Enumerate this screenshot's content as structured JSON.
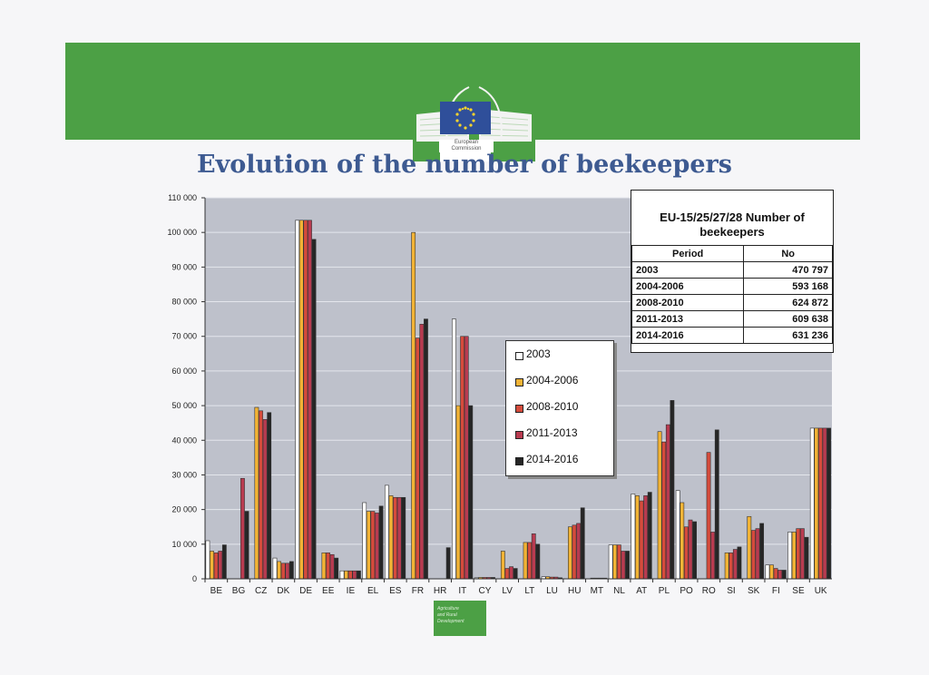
{
  "title": "Evolution of the number of beekeepers",
  "logo": {
    "text_line1": "European",
    "text_line2": "Commission"
  },
  "footer_logo": {
    "line1": "Agriculture",
    "line2": "and Rural",
    "line3": "Development"
  },
  "colors": {
    "banner": "#4ca045",
    "plot_bg": "#bec1cb",
    "series": [
      "#ffffff",
      "#f2b335",
      "#d54b3c",
      "#b83b50",
      "#262626"
    ]
  },
  "summary_table": {
    "title_line1": "EU-15/25/27/28 Number of",
    "title_line2": "beekeepers",
    "headers": [
      "Period",
      "No"
    ],
    "rows": [
      [
        "2003",
        "470 797"
      ],
      [
        "2004-2006",
        "593 168"
      ],
      [
        "2008-2010",
        "624 872"
      ],
      [
        "2011-2013",
        "609 638"
      ],
      [
        "2014-2016",
        "631 236"
      ]
    ]
  },
  "chart_data": {
    "type": "bar",
    "title": "",
    "xlabel": "",
    "ylabel": "",
    "ylim": [
      0,
      110000
    ],
    "yticks": [
      "0",
      "10 000",
      "20 000",
      "30 000",
      "40 000",
      "50 000",
      "60 000",
      "70 000",
      "80 000",
      "90 000",
      "100 000",
      "110 000"
    ],
    "grid": true,
    "legend_position": "center-right",
    "categories": [
      "BE",
      "BG",
      "CZ",
      "DK",
      "DE",
      "EE",
      "IE",
      "EL",
      "ES",
      "FR",
      "HR",
      "IT",
      "CY",
      "LV",
      "LT",
      "LU",
      "HU",
      "MT",
      "NL",
      "AT",
      "PL",
      "PO",
      "RO",
      "SI",
      "SK",
      "FI",
      "SE",
      "UK"
    ],
    "series": [
      {
        "name": "2003",
        "values": [
          11000,
          null,
          null,
          6000,
          103500,
          null,
          2300,
          22000,
          27000,
          null,
          null,
          75000,
          300,
          null,
          null,
          600,
          null,
          null,
          9800,
          24500,
          null,
          25500,
          null,
          null,
          null,
          4000,
          13500,
          43500
        ]
      },
      {
        "name": "2004-2006",
        "values": [
          8000,
          null,
          49500,
          5000,
          103500,
          7500,
          2300,
          19500,
          24000,
          100000,
          null,
          50000,
          400,
          8000,
          10500,
          600,
          15000,
          100,
          9800,
          24000,
          42500,
          22000,
          null,
          7500,
          18000,
          4000,
          13500,
          43500
        ]
      },
      {
        "name": "2008-2010",
        "values": [
          7500,
          null,
          48500,
          4500,
          103500,
          7500,
          2300,
          19500,
          23500,
          69500,
          null,
          70000,
          400,
          3000,
          10500,
          500,
          15500,
          100,
          9800,
          22500,
          39500,
          15000,
          36500,
          7500,
          14000,
          3000,
          14500,
          43500
        ]
      },
      {
        "name": "2011-2013",
        "values": [
          8000,
          29000,
          46000,
          4500,
          103500,
          7000,
          2300,
          19000,
          23500,
          73500,
          null,
          70000,
          400,
          3500,
          13000,
          500,
          16000,
          100,
          8000,
          24000,
          44500,
          17000,
          13500,
          8500,
          14500,
          2500,
          14500,
          43500
        ]
      },
      {
        "name": "2014-2016",
        "values": [
          9800,
          19500,
          48000,
          5000,
          98000,
          6000,
          2300,
          21000,
          23500,
          75000,
          9000,
          50000,
          400,
          3000,
          10000,
          300,
          20500,
          100,
          8000,
          25000,
          51500,
          16500,
          43000,
          9200,
          16000,
          2500,
          12000,
          43500
        ]
      }
    ]
  }
}
